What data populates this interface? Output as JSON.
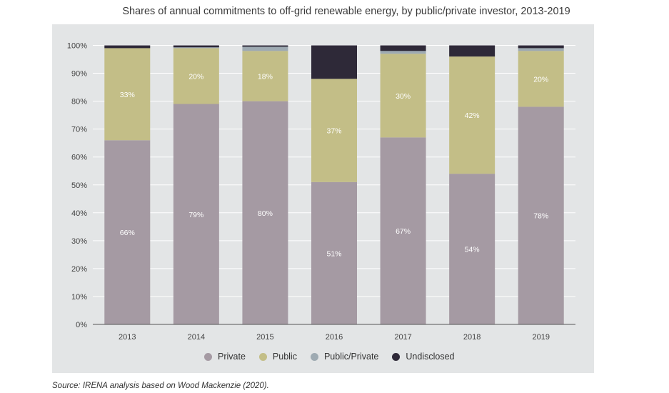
{
  "chart_data": {
    "type": "bar",
    "stacked": true,
    "title": "Shares of annual commitments to off-grid renewable energy, by public/private investor, 2013-2019",
    "categories": [
      "2013",
      "2014",
      "2015",
      "2016",
      "2017",
      "2018",
      "2019"
    ],
    "series": [
      {
        "name": "Private",
        "color": "#a59aa3",
        "values": [
          66,
          79,
          80,
          51,
          67,
          54,
          78
        ],
        "labels": [
          "66%",
          "79%",
          "80%",
          "51%",
          "67%",
          "54%",
          "78%"
        ]
      },
      {
        "name": "Public",
        "color": "#c3be87",
        "values": [
          33,
          20,
          18,
          37,
          30,
          42,
          20
        ],
        "labels": [
          "33%",
          "20%",
          "18%",
          "37%",
          "30%",
          "42%",
          "20%"
        ]
      },
      {
        "name": "Public/Private",
        "color": "#9eaab2",
        "values": [
          0,
          0.3,
          1.5,
          0,
          1,
          0,
          1
        ],
        "labels": []
      },
      {
        "name": "Undisclosed",
        "color": "#2e2938",
        "values": [
          1,
          0.7,
          0.5,
          12,
          2,
          4,
          1
        ],
        "labels": []
      }
    ],
    "yticks": [
      "0%",
      "10%",
      "20%",
      "30%",
      "40%",
      "50%",
      "60%",
      "70%",
      "80%",
      "90%",
      "100%"
    ],
    "ylim": [
      0,
      100
    ],
    "grid": true,
    "legend_position": "bottom",
    "xlabel": "",
    "ylabel": ""
  },
  "source_note": "Source: IRENA analysis based on Wood Mackenzie (2020)."
}
